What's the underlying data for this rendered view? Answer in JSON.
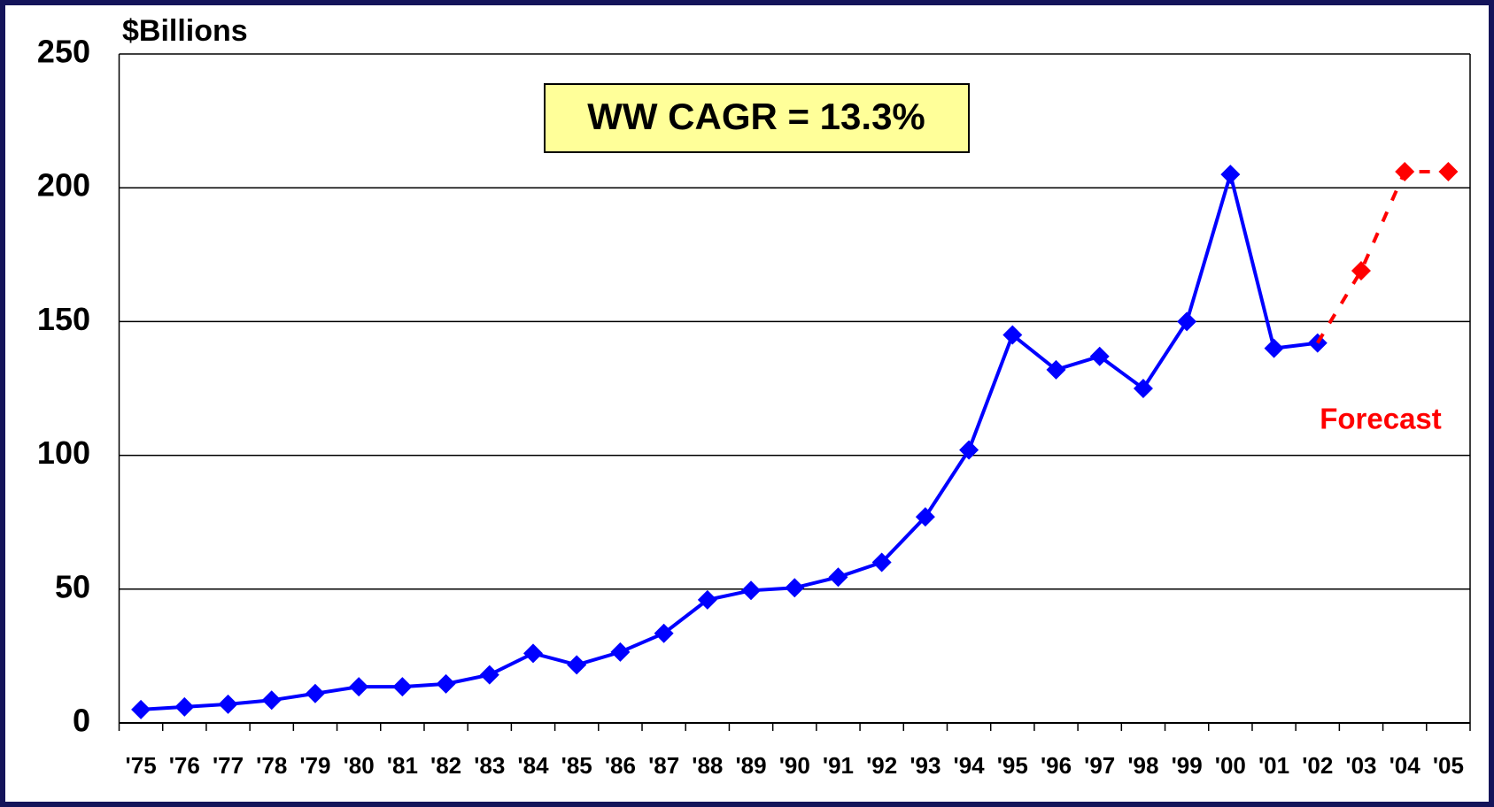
{
  "chart_data": {
    "type": "line",
    "y_label": "$Billions",
    "annotation": "WW CAGR = 13.3%",
    "forecast_label": "Forecast",
    "categories": [
      "'75",
      "'76",
      "'77",
      "'78",
      "'79",
      "'80",
      "'81",
      "'82",
      "'83",
      "'84",
      "'85",
      "'86",
      "'87",
      "'88",
      "'89",
      "'90",
      "'91",
      "'92",
      "'93",
      "'94",
      "'95",
      "'96",
      "'97",
      "'98",
      "'99",
      "'00",
      "'01",
      "'02",
      "'03",
      "'04",
      "'05"
    ],
    "series": [
      {
        "color": "#0000ff",
        "dashed": false,
        "values": [
          5,
          6,
          7,
          8.5,
          11,
          13.5,
          13.5,
          14.6,
          18,
          26,
          21.7,
          26.5,
          33.5,
          46,
          49.5,
          50.5,
          54.5,
          60,
          77,
          102,
          145,
          132,
          137,
          125,
          150,
          205,
          140,
          142,
          null,
          null,
          null
        ]
      },
      {
        "color": "#ff0000",
        "dashed": true,
        "values": [
          null,
          null,
          null,
          null,
          null,
          null,
          null,
          null,
          null,
          null,
          null,
          null,
          null,
          null,
          null,
          null,
          null,
          null,
          null,
          null,
          null,
          null,
          null,
          null,
          null,
          null,
          null,
          null,
          169,
          206,
          206
        ]
      }
    ],
    "ylim": [
      0,
      250
    ],
    "yticks": [
      0,
      50,
      100,
      150,
      200,
      250
    ],
    "grid": true
  }
}
